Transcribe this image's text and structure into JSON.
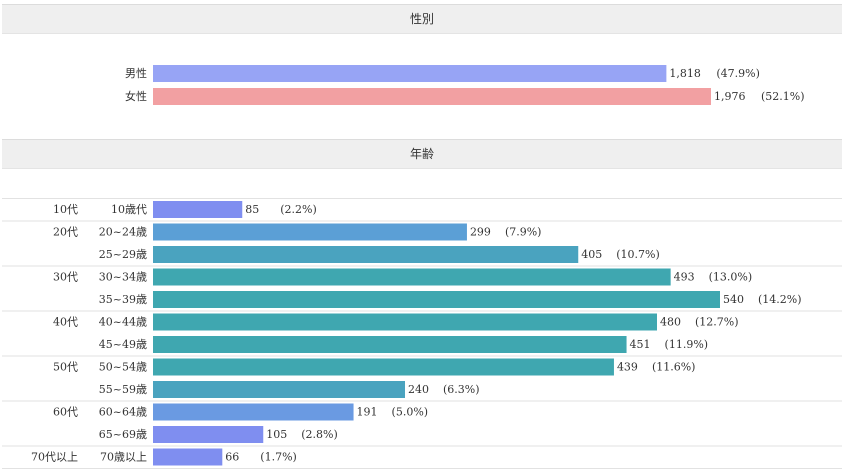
{
  "gender": {
    "title": "性別",
    "rows": [
      {
        "label": "男性",
        "count": 1818,
        "count_text": "1,818",
        "pct_text": "(47.9%)",
        "color": "#97a4f5"
      },
      {
        "label": "女性",
        "count": 1976,
        "count_text": "1,976",
        "pct_text": "(52.1%)",
        "color": "#f2a0a2"
      }
    ]
  },
  "age": {
    "title": "年齢",
    "groups": [
      {
        "label": "10代",
        "rows": [
          {
            "label": "10歳代",
            "count": 85,
            "pct_text": "(2.2%)",
            "color": "#7f8ef0"
          }
        ]
      },
      {
        "label": "20代",
        "rows": [
          {
            "label": "20~24歳",
            "count": 299,
            "pct_text": "(7.9%)",
            "color": "#5b9fd6"
          },
          {
            "label": "25~29歳",
            "count": 405,
            "pct_text": "(10.7%)",
            "color": "#4aa3bf"
          }
        ]
      },
      {
        "label": "30代",
        "rows": [
          {
            "label": "30~34歳",
            "count": 493,
            "pct_text": "(13.0%)",
            "color": "#3fa7b0"
          },
          {
            "label": "35~39歳",
            "count": 540,
            "pct_text": "(14.2%)",
            "color": "#3fa7b0"
          }
        ]
      },
      {
        "label": "40代",
        "rows": [
          {
            "label": "40~44歳",
            "count": 480,
            "pct_text": "(12.7%)",
            "color": "#3fa7b0"
          },
          {
            "label": "45~49歳",
            "count": 451,
            "pct_text": "(11.9%)",
            "color": "#3fa7b0"
          }
        ]
      },
      {
        "label": "50代",
        "rows": [
          {
            "label": "50~54歳",
            "count": 439,
            "pct_text": "(11.6%)",
            "color": "#3fa7b0"
          },
          {
            "label": "55~59歳",
            "count": 240,
            "pct_text": "(6.3%)",
            "color": "#4aa3bf"
          }
        ]
      },
      {
        "label": "60代",
        "rows": [
          {
            "label": "60~64歳",
            "count": 191,
            "pct_text": "(5.0%)",
            "color": "#6a9ae2"
          },
          {
            "label": "65~69歳",
            "count": 105,
            "pct_text": "(2.8%)",
            "color": "#7f8ef0"
          }
        ]
      },
      {
        "label": "70代以上",
        "rows": [
          {
            "label": "70歳以上",
            "count": 66,
            "pct_text": "(1.7%)",
            "color": "#7f8ef0"
          }
        ]
      }
    ]
  },
  "chart_data": [
    {
      "type": "bar",
      "title": "性別",
      "categories": [
        "男性",
        "女性"
      ],
      "values": [
        1818,
        1976
      ],
      "percent": [
        47.9,
        52.1
      ],
      "xlim": [
        0,
        1976
      ]
    },
    {
      "type": "bar",
      "title": "年齢",
      "categories": [
        "10歳代",
        "20~24歳",
        "25~29歳",
        "30~34歳",
        "35~39歳",
        "40~44歳",
        "45~49歳",
        "50~54歳",
        "55~59歳",
        "60~64歳",
        "65~69歳",
        "70歳以上"
      ],
      "groups": [
        "10代",
        "20代",
        "20代",
        "30代",
        "30代",
        "40代",
        "40代",
        "50代",
        "50代",
        "60代",
        "60代",
        "70代以上"
      ],
      "values": [
        85,
        299,
        405,
        493,
        540,
        480,
        451,
        439,
        240,
        191,
        105,
        66
      ],
      "percent": [
        2.2,
        7.9,
        10.7,
        13.0,
        14.2,
        12.7,
        11.9,
        11.6,
        6.3,
        5.0,
        2.8,
        1.7
      ],
      "xlim": [
        0,
        540
      ]
    }
  ]
}
